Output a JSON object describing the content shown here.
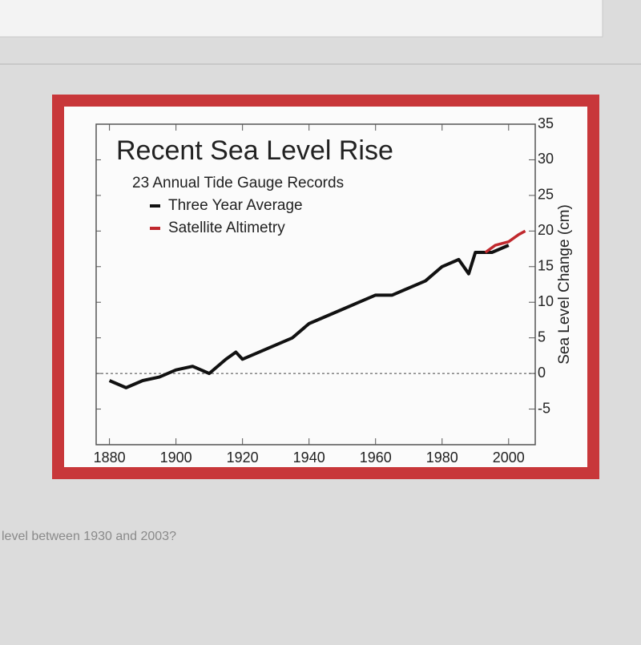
{
  "question": "level between 1930 and 2003?",
  "chart_data": {
    "type": "line",
    "title": "Recent Sea Level Rise",
    "subtitle": "23 Annual Tide Gauge Records",
    "y_label": "Sea Level Change (cm)",
    "series": [
      {
        "name": "Three Year Average",
        "color": "#111111",
        "x": [
          1880,
          1885,
          1890,
          1895,
          1900,
          1905,
          1910,
          1915,
          1918,
          1920,
          1925,
          1930,
          1935,
          1940,
          1945,
          1950,
          1955,
          1960,
          1965,
          1970,
          1975,
          1980,
          1985,
          1988,
          1990,
          1995,
          2000
        ],
        "values": [
          -1,
          -2,
          -1,
          -0.5,
          0.5,
          1,
          0,
          2,
          3,
          2,
          3,
          4,
          5,
          7,
          8,
          9,
          10,
          11,
          11,
          12,
          13,
          15,
          16,
          14,
          17,
          17,
          18
        ]
      },
      {
        "name": "Satellite Altimetry",
        "color": "#c0282d",
        "x": [
          1993,
          1996,
          2000,
          2003,
          2005
        ],
        "values": [
          17,
          18,
          18.5,
          19.5,
          20
        ]
      }
    ],
    "baseline": 0,
    "xlim": [
      1876,
      2008
    ],
    "xticks": [
      1880,
      1900,
      1920,
      1940,
      1960,
      1980,
      2000
    ],
    "ylim": [
      -10,
      35
    ],
    "yticks": [
      -5,
      0,
      5,
      10,
      15,
      20,
      25,
      30,
      35
    ]
  }
}
